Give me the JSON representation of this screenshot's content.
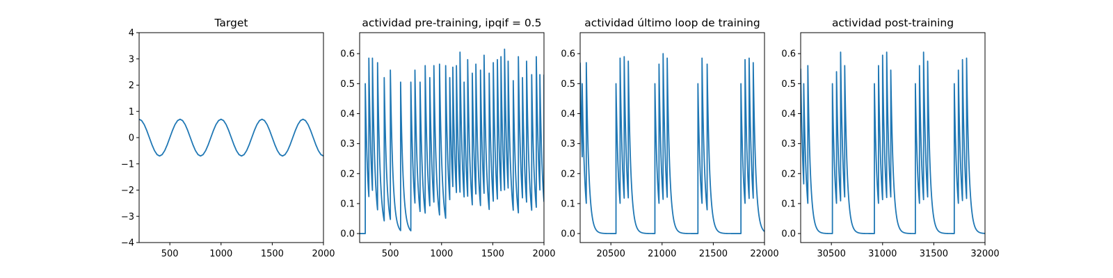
{
  "chart_data": [
    {
      "type": "line",
      "title": "Target",
      "xlabel": "",
      "ylabel": "",
      "xlim": [
        200,
        2000
      ],
      "ylim": [
        -4,
        4
      ],
      "xticks": [
        500,
        1000,
        1500,
        2000
      ],
      "yticks": [
        -4,
        -3,
        -2,
        -1,
        0,
        1,
        2,
        3,
        4
      ],
      "xtick_labels": [
        "500",
        "1000",
        "1500",
        "2000"
      ],
      "ytick_labels": [
        "−4",
        "−3",
        "−2",
        "−1",
        "0",
        "1",
        "2",
        "3",
        "4"
      ],
      "grid": false,
      "series": [
        {
          "color": "#1f77b4",
          "x": [
            200,
            225,
            250,
            275,
            300,
            325,
            350,
            375,
            400,
            425,
            450,
            475,
            500,
            525,
            550,
            575,
            600,
            625,
            650,
            675,
            700,
            725,
            750,
            775,
            800,
            825,
            850,
            875,
            900,
            925,
            950,
            975,
            1000,
            1025,
            1050,
            1075,
            1100,
            1125,
            1150,
            1175,
            1200,
            1225,
            1250,
            1275,
            1300,
            1325,
            1350,
            1375,
            1400,
            1425,
            1450,
            1475,
            1500,
            1525,
            1550,
            1575,
            1600,
            1625,
            1650,
            1675,
            1700,
            1725,
            1750,
            1775,
            1800,
            1825,
            1850,
            1875,
            1900,
            1925,
            1950,
            1975,
            2000
          ],
          "y": [
            0.7,
            0.647,
            0.495,
            0.268,
            0,
            -0.268,
            -0.495,
            -0.647,
            -0.7,
            -0.647,
            -0.495,
            -0.268,
            0,
            0.268,
            0.495,
            0.647,
            0.7,
            0.647,
            0.495,
            0.268,
            0,
            -0.268,
            -0.495,
            -0.647,
            -0.7,
            -0.647,
            -0.495,
            -0.268,
            0,
            0.268,
            0.495,
            0.647,
            0.7,
            0.647,
            0.495,
            0.268,
            0,
            -0.268,
            -0.495,
            -0.647,
            -0.7,
            -0.647,
            -0.495,
            -0.268,
            0,
            0.268,
            0.495,
            0.647,
            0.7,
            0.647,
            0.495,
            0.268,
            0,
            -0.268,
            -0.495,
            -0.647,
            -0.7,
            -0.647,
            -0.495,
            -0.268,
            0,
            0.268,
            0.495,
            0.647,
            0.7,
            0.647,
            0.495,
            0.268,
            0,
            -0.268,
            -0.495,
            -0.647,
            -0.7
          ]
        }
      ]
    },
    {
      "type": "line",
      "title": "actividad pre-training, ipqif = 0.5",
      "xlabel": "",
      "ylabel": "",
      "xlim": [
        200,
        2000
      ],
      "ylim": [
        -0.03,
        0.67
      ],
      "xticks": [
        500,
        1000,
        1500,
        2000
      ],
      "yticks": [
        0,
        0.1,
        0.2,
        0.3,
        0.4,
        0.5,
        0.6
      ],
      "xtick_labels": [
        "500",
        "1000",
        "1500",
        "2000"
      ],
      "ytick_labels": [
        "0.0",
        "0.1",
        "0.2",
        "0.3",
        "0.4",
        "0.5",
        "0.6"
      ],
      "grid": false,
      "baseline": {
        "start": 200,
        "end": 255,
        "value": 0
      },
      "decay_tau": 25,
      "series": [
        {
          "color": "#1f77b4",
          "spike_times": [
            255,
            290,
            325,
            375,
            440,
            500,
            600,
            700,
            740,
            790,
            840,
            885,
            925,
            980,
            1040,
            1080,
            1110,
            1145,
            1180,
            1220,
            1255,
            1300,
            1335,
            1380,
            1415,
            1465,
            1505,
            1545,
            1580,
            1615,
            1650,
            1700,
            1750,
            1790,
            1830,
            1880,
            1925,
            1960,
            2000
          ],
          "spike_peaks": [
            0.5,
            0.585,
            0.585,
            0.57,
            0.52,
            0.545,
            0.505,
            0.505,
            0.545,
            0.505,
            0.56,
            0.52,
            0.56,
            0.565,
            0.56,
            0.52,
            0.555,
            0.56,
            0.605,
            0.505,
            0.58,
            0.535,
            0.565,
            0.545,
            0.595,
            0.535,
            0.57,
            0.58,
            0.59,
            0.615,
            0.575,
            0.51,
            0.59,
            0.52,
            0.575,
            0.53,
            0.59,
            0.53,
            0.53
          ]
        }
      ]
    },
    {
      "type": "line",
      "title": "actividad último loop de training",
      "xlabel": "",
      "ylabel": "",
      "xlim": [
        20200,
        22000
      ],
      "ylim": [
        -0.03,
        0.67
      ],
      "xticks": [
        20500,
        21000,
        21500,
        22000
      ],
      "yticks": [
        0,
        0.1,
        0.2,
        0.3,
        0.4,
        0.5,
        0.6
      ],
      "xtick_labels": [
        "20500",
        "21000",
        "21500",
        "22000"
      ],
      "ytick_labels": [
        "0.0",
        "0.1",
        "0.2",
        "0.3",
        "0.4",
        "0.5",
        "0.6"
      ],
      "grid": false,
      "baseline_value": 0,
      "decay_tau": 25,
      "series": [
        {
          "color": "#1f77b4",
          "initial_value": 0.57,
          "spike_times": [
            20220,
            20260,
            20550,
            20590,
            20630,
            20670,
            20930,
            20970,
            21010,
            21050,
            21350,
            21390,
            21440,
            21770,
            21810,
            21850,
            21890
          ],
          "spike_peaks": [
            0.5,
            0.57,
            0.5,
            0.585,
            0.59,
            0.575,
            0.5,
            0.565,
            0.6,
            0.585,
            0.5,
            0.585,
            0.565,
            0.5,
            0.58,
            0.585,
            0.57
          ]
        }
      ]
    },
    {
      "type": "line",
      "title": "actividad post-training",
      "xlabel": "",
      "ylabel": "",
      "xlim": [
        30200,
        32000
      ],
      "ylim": [
        -0.03,
        0.67
      ],
      "xticks": [
        30500,
        31000,
        31500,
        32000
      ],
      "yticks": [
        0,
        0.1,
        0.2,
        0.3,
        0.4,
        0.5,
        0.6
      ],
      "xtick_labels": [
        "30500",
        "31000",
        "31500",
        "32000"
      ],
      "ytick_labels": [
        "0.0",
        "0.1",
        "0.2",
        "0.3",
        "0.4",
        "0.5",
        "0.6"
      ],
      "grid": false,
      "baseline_value": 0,
      "decay_tau": 25,
      "series": [
        {
          "color": "#1f77b4",
          "initial_value": 0.55,
          "spike_times": [
            30230,
            30270,
            30510,
            30550,
            30590,
            30630,
            30920,
            30960,
            31000,
            31040,
            31080,
            31320,
            31360,
            31400,
            31440,
            31700,
            31740,
            31780,
            31820
          ],
          "spike_peaks": [
            0.5,
            0.56,
            0.5,
            0.54,
            0.605,
            0.56,
            0.5,
            0.56,
            0.595,
            0.605,
            0.545,
            0.5,
            0.56,
            0.605,
            0.575,
            0.5,
            0.545,
            0.58,
            0.585
          ]
        }
      ]
    }
  ]
}
